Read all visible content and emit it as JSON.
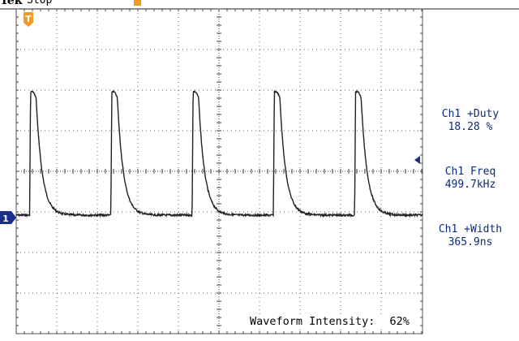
{
  "header": {
    "brand": "Tek",
    "acquisition_status": "Stop"
  },
  "graticule": {
    "divisions_x": 10,
    "divisions_y": 8,
    "background": "#ffffff",
    "grid_color": "#555555",
    "trace_color": "#222222"
  },
  "markers": {
    "trigger_position": "T",
    "trigger_color": "#f29b22",
    "channel_ground": "1",
    "channel_color": "#1a2f8a",
    "trigger_level_color": "#1a2f8a"
  },
  "measurements": [
    {
      "label": "Ch1 +Duty",
      "value": "18.28 %"
    },
    {
      "label": "Ch1 Freq",
      "value": "499.7kHz"
    },
    {
      "label": "Ch1 +Width",
      "value": "365.9ns"
    }
  ],
  "waveform": {
    "frequency": "499.7kHz",
    "pulses_visible": 5,
    "shape": "fast-rise exponential-decay pulse train"
  },
  "intensity": {
    "label": "Waveform Intensity:",
    "value": "62%"
  }
}
